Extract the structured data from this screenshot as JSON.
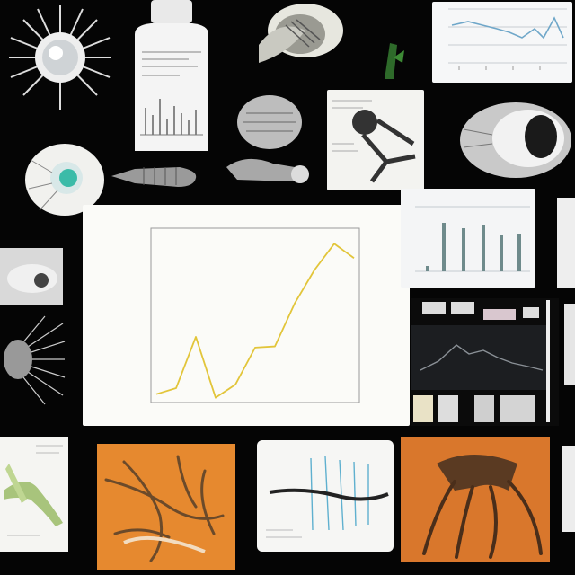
{
  "chart_data": {
    "type": "line",
    "title": "",
    "xlabel": "",
    "ylabel": "",
    "x": [
      1,
      2,
      3,
      4,
      5,
      6,
      7,
      8,
      9,
      10,
      11
    ],
    "values": [
      0.2,
      0.45,
      2.6,
      0.05,
      0.6,
      2.15,
      2.2,
      4.0,
      5.4,
      6.5,
      5.9
    ],
    "ylim": [
      0,
      7
    ],
    "grid": false,
    "colors": {
      "line": "#e2c53a",
      "axis": "#9a9a9a"
    }
  },
  "icons": {
    "sun": "sunburst-illustration",
    "bottle": "specimen-bottle-illustration",
    "shell": "shell-specimen-illustration",
    "insect": "insect-specimen-illustration",
    "eye": "eye-anatomy-illustration",
    "tree-orange": "root-system-illustration",
    "tree-large": "branching-root-illustration"
  }
}
